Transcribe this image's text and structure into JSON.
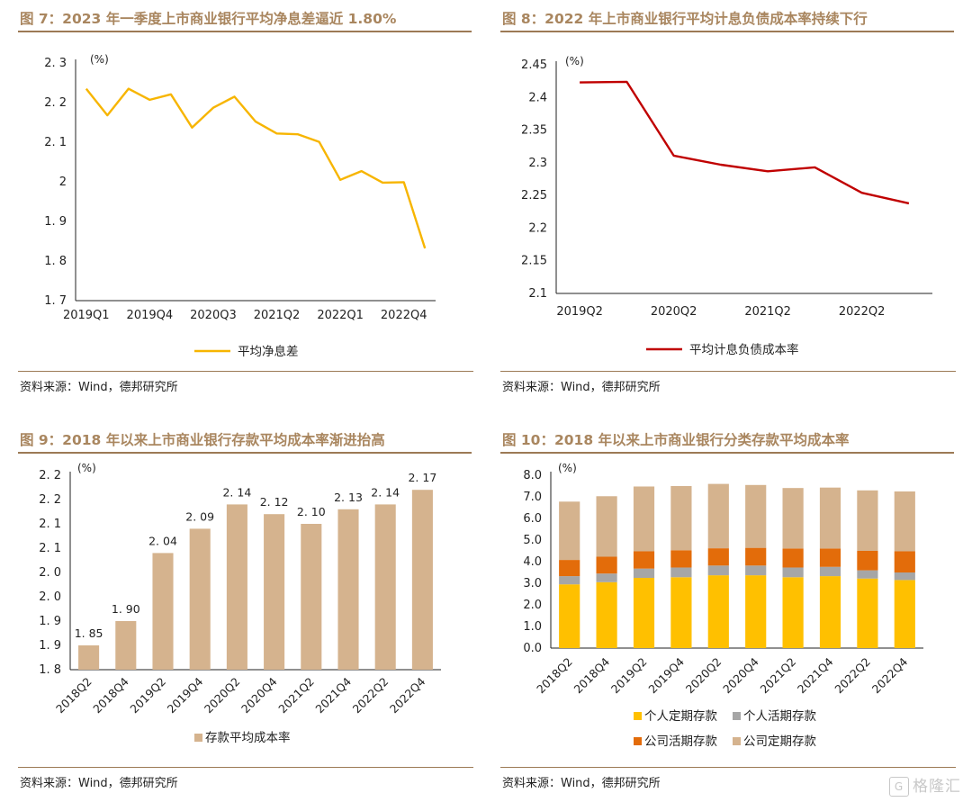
{
  "source_text": "资料来源：Wind，德邦研究所",
  "watermark": {
    "icon_glyph": "G",
    "text": "格隆汇"
  },
  "figures": [
    {
      "title": "图 7：2023 年一季度上市商业银行平均净息差逼近 1.80%"
    },
    {
      "title": "图 8：2022 年上市商业银行平均计息负债成本率持续下行"
    },
    {
      "title": "图 9：2018 年以来上市商业银行存款平均成本率渐进抬高"
    },
    {
      "title": "图 10：2018 年以来上市商业银行分类存款平均成本率"
    }
  ],
  "chart_data": [
    {
      "type": "line",
      "unit_label": "(%)",
      "ylim": [
        1.7,
        2.3
      ],
      "yticks": [
        1.7,
        1.8,
        1.9,
        2.0,
        2.1,
        2.2,
        2.3
      ],
      "ytick_labels": [
        "1. 7",
        "1. 8",
        "1. 9",
        "2",
        "2. 1",
        "2. 2",
        "2. 3"
      ],
      "x": [
        "2019Q1",
        "2019Q2",
        "2019Q3",
        "2019Q4",
        "2020Q1",
        "2020Q2",
        "2020Q3",
        "2020Q4",
        "2021Q1",
        "2021Q2",
        "2021Q3",
        "2021Q4",
        "2022Q1",
        "2022Q2",
        "2022Q3",
        "2022Q4",
        "2023Q1"
      ],
      "xtick_labels": [
        {
          "i": 0,
          "label": "2019Q1"
        },
        {
          "i": 3,
          "label": "2019Q4"
        },
        {
          "i": 6,
          "label": "2020Q3"
        },
        {
          "i": 9,
          "label": "2021Q2"
        },
        {
          "i": 12,
          "label": "2022Q1"
        },
        {
          "i": 15,
          "label": "2022Q4"
        }
      ],
      "series": [
        {
          "name": "平均净息差",
          "color": "#f7b500",
          "values": [
            2.235,
            2.168,
            2.235,
            2.207,
            2.221,
            2.137,
            2.187,
            2.215,
            2.152,
            2.122,
            2.12,
            2.101,
            2.005,
            2.027,
            1.998,
            1.999,
            1.832
          ]
        }
      ],
      "legend": "bottom"
    },
    {
      "type": "line",
      "unit_label": "(%)",
      "ylim": [
        2.1,
        2.45
      ],
      "yticks": [
        2.1,
        2.15,
        2.2,
        2.25,
        2.3,
        2.35,
        2.4,
        2.45
      ],
      "ytick_labels": [
        "2.1",
        "2.15",
        "2.2",
        "2.25",
        "2.3",
        "2.35",
        "2.4",
        "2.45"
      ],
      "x": [
        "2019Q2",
        "2019Q4",
        "2020Q2",
        "2020Q4",
        "2021Q2",
        "2021Q4",
        "2022Q2",
        "2022Q4"
      ],
      "xtick_labels": [
        {
          "i": 0,
          "label": "2019Q2"
        },
        {
          "i": 2,
          "label": "2020Q2"
        },
        {
          "i": 4,
          "label": "2021Q2"
        },
        {
          "i": 6,
          "label": "2022Q2"
        }
      ],
      "series": [
        {
          "name": "平均计息负债成本率",
          "color": "#c00000",
          "values": [
            2.423,
            2.424,
            2.311,
            2.297,
            2.287,
            2.293,
            2.254,
            2.238
          ]
        }
      ],
      "legend": "bottom"
    },
    {
      "type": "bar",
      "unit_label": "(%)",
      "ylim": [
        1.8,
        2.2
      ],
      "yticks": [
        1.8,
        1.85,
        1.9,
        1.95,
        2.0,
        2.05,
        2.1,
        2.15,
        2.2
      ],
      "ytick_labels": [
        "1. 8",
        "1. 9",
        "1. 9",
        "2. 0",
        "2. 0",
        "2. 1",
        "2. 1",
        "2. 2",
        "2. 2"
      ],
      "categories": [
        "2018Q2",
        "2018Q4",
        "2019Q2",
        "2019Q4",
        "2020Q2",
        "2020Q4",
        "2021Q2",
        "2021Q4",
        "2022Q2",
        "2022Q4"
      ],
      "series": [
        {
          "name": "存款平均成本率",
          "color": "#d5b38e",
          "values": [
            1.85,
            1.9,
            2.04,
            2.09,
            2.14,
            2.12,
            2.1,
            2.13,
            2.14,
            2.17
          ],
          "data_labels": [
            "1. 85",
            "1. 90",
            "2. 04",
            "2. 09",
            "2. 14",
            "2. 12",
            "2. 10",
            "2. 13",
            "2. 14",
            "2. 17"
          ]
        }
      ],
      "legend": "bottom"
    },
    {
      "type": "bar",
      "stacked": true,
      "unit_label": "(%)",
      "ylim": [
        0,
        8
      ],
      "yticks": [
        0,
        1,
        2,
        3,
        4,
        5,
        6,
        7,
        8
      ],
      "ytick_labels": [
        "0.0",
        "1.0",
        "2.0",
        "3.0",
        "4.0",
        "5.0",
        "6.0",
        "7.0",
        "8.0"
      ],
      "categories": [
        "2018Q2",
        "2018Q4",
        "2019Q2",
        "2019Q4",
        "2020Q2",
        "2020Q4",
        "2021Q2",
        "2021Q4",
        "2022Q2",
        "2022Q4"
      ],
      "series": [
        {
          "name": "个人定期存款",
          "color": "#ffc000",
          "values": [
            2.95,
            3.05,
            3.25,
            3.28,
            3.37,
            3.37,
            3.28,
            3.33,
            3.22,
            3.15
          ]
        },
        {
          "name": "个人活期存款",
          "color": "#a6a6a6",
          "values": [
            0.38,
            0.4,
            0.43,
            0.45,
            0.45,
            0.45,
            0.45,
            0.43,
            0.38,
            0.35
          ]
        },
        {
          "name": "公司活期存款",
          "color": "#e36c0a",
          "values": [
            0.75,
            0.78,
            0.8,
            0.8,
            0.8,
            0.82,
            0.88,
            0.85,
            0.9,
            0.98
          ]
        },
        {
          "name": "公司定期存款",
          "color": "#d5b38e",
          "values": [
            2.7,
            2.8,
            3.0,
            2.97,
            2.98,
            2.91,
            2.8,
            2.82,
            2.8,
            2.77
          ]
        }
      ],
      "legend": "bottom"
    }
  ]
}
